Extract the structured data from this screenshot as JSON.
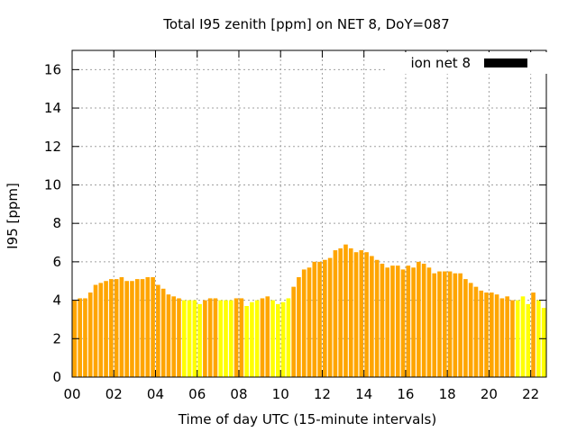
{
  "chart_data": {
    "type": "bar",
    "title": "Total I95 zenith [ppm] on NET 8, DoY=087",
    "xlabel": "Time of day UTC (15-minute intervals)",
    "ylabel": "I95 [ppm]",
    "xlim": [
      0,
      22.75
    ],
    "ylim": [
      0,
      17
    ],
    "x_tick_values": [
      0,
      2,
      4,
      6,
      8,
      10,
      12,
      14,
      16,
      18,
      20,
      22
    ],
    "x_ticks": [
      "00",
      "02",
      "04",
      "06",
      "08",
      "10",
      "12",
      "14",
      "16",
      "18",
      "20",
      "22"
    ],
    "y_tick_values": [
      0,
      2,
      4,
      6,
      8,
      10,
      12,
      14,
      16
    ],
    "y_ticks": [
      "0",
      "2",
      "4",
      "6",
      "8",
      "10",
      "12",
      "14",
      "16"
    ],
    "grid": true,
    "legend": {
      "label": "ion net 8",
      "color": "#000000",
      "placement": "top-right"
    },
    "colors": {
      "normal": "#ffa500",
      "highlight": "#ffff00"
    },
    "interval_hours": 0.25,
    "values": [
      4.0,
      4.1,
      4.1,
      4.4,
      4.8,
      4.9,
      5.0,
      5.1,
      5.1,
      5.2,
      5.0,
      5.0,
      5.1,
      5.1,
      5.2,
      5.2,
      4.8,
      4.6,
      4.3,
      4.2,
      4.1,
      4.0,
      4.0,
      4.0,
      3.8,
      4.0,
      4.1,
      4.1,
      4.0,
      4.0,
      4.0,
      4.1,
      4.1,
      3.7,
      3.9,
      4.0,
      4.1,
      4.2,
      4.0,
      3.8,
      3.9,
      4.1,
      4.7,
      5.2,
      5.6,
      5.7,
      6.0,
      6.0,
      6.1,
      6.2,
      6.6,
      6.7,
      6.9,
      6.7,
      6.5,
      6.6,
      6.5,
      6.3,
      6.1,
      5.9,
      5.7,
      5.8,
      5.8,
      5.6,
      5.8,
      5.7,
      6.0,
      5.9,
      5.7,
      5.4,
      5.5,
      5.5,
      5.5,
      5.4,
      5.4,
      5.1,
      4.9,
      4.7,
      4.5,
      4.4,
      4.4,
      4.3,
      4.1,
      4.2,
      4.0,
      4.0,
      4.2,
      3.8,
      4.4,
      4.0,
      3.6
    ],
    "highlighted_indices": [
      21,
      22,
      23,
      24,
      28,
      29,
      30,
      33,
      34,
      35,
      38,
      39,
      40,
      41,
      85,
      86,
      87,
      89,
      90
    ]
  }
}
